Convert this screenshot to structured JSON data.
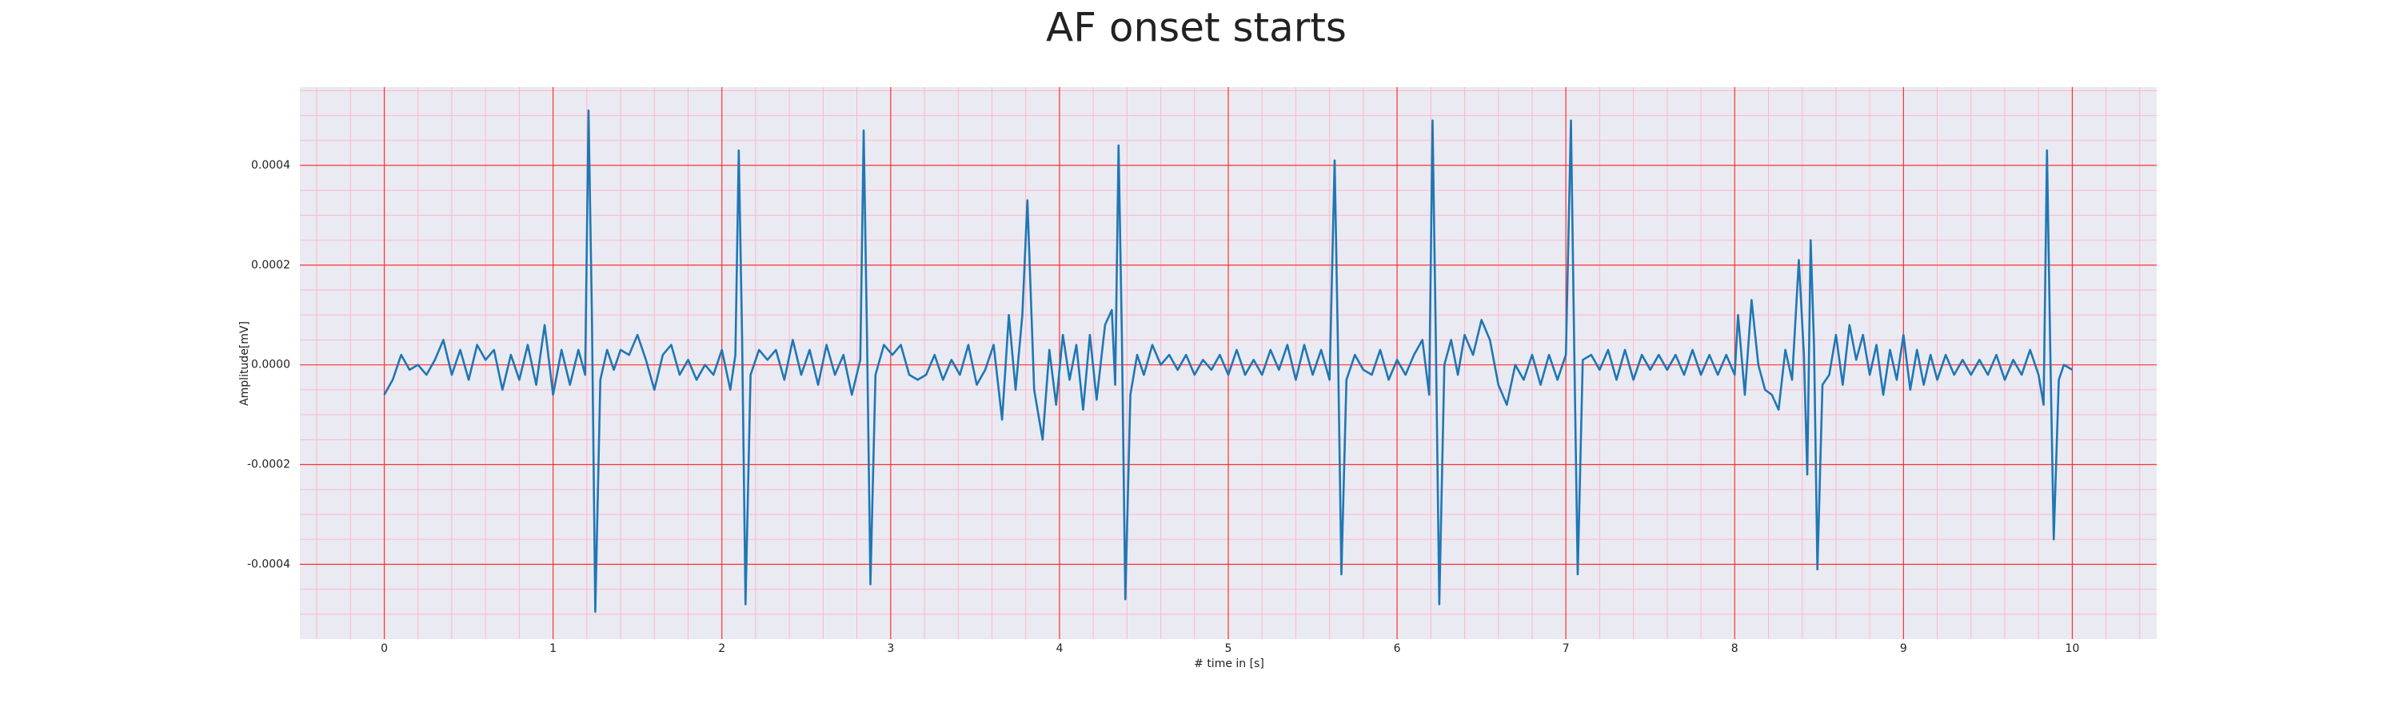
{
  "chart_data": {
    "type": "line",
    "title": "AF onset starts",
    "xlabel": "# time in [s]",
    "ylabel": "Amplitude[mV]",
    "xlim": [
      -0.5,
      10.5
    ],
    "ylim": [
      -0.00055,
      0.000557
    ],
    "xticks": [
      0,
      1,
      2,
      3,
      4,
      5,
      6,
      7,
      8,
      9,
      10
    ],
    "yticks": [
      -0.0004,
      -0.0002,
      {
        "value": 0,
        "label": "0.0000"
      },
      0.0002,
      0.0004
    ],
    "xminorticks": [
      -0.4,
      -0.2,
      0.2,
      0.4,
      0.6,
      0.8,
      1.2,
      1.4,
      1.6,
      1.8,
      2.2,
      2.4,
      2.6,
      2.8,
      3.2,
      3.4,
      3.6,
      3.8,
      4.2,
      4.4,
      4.6,
      4.8,
      5.2,
      5.4,
      5.6,
      5.8,
      6.2,
      6.4,
      6.6,
      6.8,
      7.2,
      7.4,
      7.6,
      7.8,
      8.2,
      8.4,
      8.6,
      8.8,
      9.2,
      9.4,
      9.6,
      9.8,
      10.2,
      10.4
    ],
    "yminorticks": [
      -0.0005,
      -0.00045,
      -0.00035,
      -0.0003,
      -0.00025,
      -0.00015,
      -0.0001,
      -5e-05,
      5e-05,
      0.0001,
      0.00015,
      0.00025,
      0.0003,
      0.00035,
      0.00045,
      0.0005,
      0.00055
    ],
    "grid": true,
    "grid_color": "#ff3030",
    "minor_grid_color": "#ffb6c8",
    "background": "#eaeaf2",
    "x": [
      0.0,
      0.05,
      0.1,
      0.15,
      0.2,
      0.25,
      0.3,
      0.35,
      0.4,
      0.45,
      0.5,
      0.55,
      0.6,
      0.65,
      0.7,
      0.75,
      0.8,
      0.85,
      0.9,
      0.95,
      1.0,
      1.05,
      1.1,
      1.15,
      1.19,
      1.21,
      1.23,
      1.25,
      1.28,
      1.32,
      1.36,
      1.4,
      1.45,
      1.5,
      1.55,
      1.6,
      1.65,
      1.7,
      1.75,
      1.8,
      1.85,
      1.9,
      1.95,
      2.0,
      2.05,
      2.08,
      2.1,
      2.12,
      2.14,
      2.17,
      2.22,
      2.27,
      2.32,
      2.37,
      2.42,
      2.47,
      2.52,
      2.57,
      2.62,
      2.67,
      2.72,
      2.77,
      2.82,
      2.84,
      2.86,
      2.88,
      2.91,
      2.96,
      3.01,
      3.06,
      3.11,
      3.16,
      3.21,
      3.26,
      3.31,
      3.36,
      3.41,
      3.46,
      3.51,
      3.56,
      3.61,
      3.66,
      3.7,
      3.74,
      3.78,
      3.81,
      3.85,
      3.88,
      3.9,
      3.94,
      3.98,
      4.02,
      4.06,
      4.1,
      4.14,
      4.18,
      4.22,
      4.27,
      4.31,
      4.33,
      4.35,
      4.37,
      4.39,
      4.42,
      4.46,
      4.5,
      4.55,
      4.6,
      4.65,
      4.7,
      4.75,
      4.8,
      4.85,
      4.9,
      4.95,
      5.0,
      5.05,
      5.1,
      5.15,
      5.2,
      5.25,
      5.3,
      5.35,
      5.4,
      5.45,
      5.5,
      5.55,
      5.6,
      5.63,
      5.65,
      5.67,
      5.7,
      5.75,
      5.8,
      5.85,
      5.9,
      5.95,
      6.0,
      6.05,
      6.1,
      6.15,
      6.19,
      6.21,
      6.23,
      6.25,
      6.28,
      6.32,
      6.36,
      6.4,
      6.45,
      6.5,
      6.55,
      6.6,
      6.65,
      6.7,
      6.75,
      6.8,
      6.85,
      6.9,
      6.95,
      7.0,
      7.03,
      7.05,
      7.07,
      7.1,
      7.15,
      7.2,
      7.25,
      7.3,
      7.35,
      7.4,
      7.45,
      7.5,
      7.55,
      7.6,
      7.65,
      7.7,
      7.75,
      7.8,
      7.85,
      7.9,
      7.95,
      8.0,
      8.02,
      8.06,
      8.1,
      8.14,
      8.18,
      8.22,
      8.26,
      8.3,
      8.34,
      8.38,
      8.41,
      8.43,
      8.45,
      8.47,
      8.49,
      8.52,
      8.56,
      8.6,
      8.64,
      8.68,
      8.72,
      8.76,
      8.8,
      8.84,
      8.88,
      8.92,
      8.96,
      9.0,
      9.04,
      9.08,
      9.12,
      9.16,
      9.2,
      9.25,
      9.3,
      9.35,
      9.4,
      9.45,
      9.5,
      9.55,
      9.6,
      9.65,
      9.7,
      9.75,
      9.8,
      9.83,
      9.85,
      9.87,
      9.89,
      9.92,
      9.95,
      10.0
    ],
    "series": [
      {
        "color": "#1f77b4",
        "values": [
          -6e-05,
          -3e-05,
          2e-05,
          -1e-05,
          0.0,
          -2e-05,
          1e-05,
          5e-05,
          -2e-05,
          3e-05,
          -3e-05,
          4e-05,
          1e-05,
          3e-05,
          -5e-05,
          2e-05,
          -3e-05,
          4e-05,
          -4e-05,
          8e-05,
          -6e-05,
          3e-05,
          -4e-05,
          3e-05,
          -2e-05,
          0.00051,
          0.0001,
          -0.000495,
          -3e-05,
          3e-05,
          -1e-05,
          3e-05,
          2e-05,
          6e-05,
          1e-05,
          -5e-05,
          2e-05,
          4e-05,
          -2e-05,
          1e-05,
          -3e-05,
          0.0,
          -2e-05,
          3e-05,
          -5e-05,
          2e-05,
          0.00043,
          5e-05,
          -0.00048,
          -2e-05,
          3e-05,
          1e-05,
          3e-05,
          -3e-05,
          5e-05,
          -2e-05,
          3e-05,
          -4e-05,
          4e-05,
          -2e-05,
          2e-05,
          -6e-05,
          1e-05,
          0.00047,
          5e-05,
          -0.00044,
          -2e-05,
          4e-05,
          2e-05,
          4e-05,
          -2e-05,
          -3e-05,
          -2e-05,
          2e-05,
          -3e-05,
          1e-05,
          -2e-05,
          4e-05,
          -4e-05,
          -1e-05,
          4e-05,
          -0.00011,
          0.0001,
          -5e-05,
          0.0001,
          0.00033,
          -5e-05,
          -0.00011,
          -0.00015,
          3e-05,
          -8e-05,
          6e-05,
          -3e-05,
          4e-05,
          -9e-05,
          6e-05,
          -7e-05,
          8e-05,
          0.00011,
          -4e-05,
          0.00044,
          5e-05,
          -0.00047,
          -6e-05,
          2e-05,
          -2e-05,
          4e-05,
          0.0,
          2e-05,
          -1e-05,
          2e-05,
          -2e-05,
          1e-05,
          -1e-05,
          2e-05,
          -2e-05,
          3e-05,
          -2e-05,
          1e-05,
          -2e-05,
          3e-05,
          -1e-05,
          4e-05,
          -3e-05,
          4e-05,
          -2e-05,
          3e-05,
          -3e-05,
          0.00041,
          3e-05,
          -0.00042,
          -3e-05,
          2e-05,
          -1e-05,
          -2e-05,
          3e-05,
          -3e-05,
          1e-05,
          -2e-05,
          2e-05,
          5e-05,
          -6e-05,
          0.00049,
          4e-05,
          -0.00048,
          0.0,
          5e-05,
          -2e-05,
          6e-05,
          2e-05,
          9e-05,
          5e-05,
          -4e-05,
          -8e-05,
          0.0,
          -3e-05,
          2e-05,
          -4e-05,
          2e-05,
          -3e-05,
          2e-05,
          0.00049,
          2e-05,
          -0.00042,
          1e-05,
          2e-05,
          -1e-05,
          3e-05,
          -3e-05,
          3e-05,
          -3e-05,
          2e-05,
          -1e-05,
          2e-05,
          -1e-05,
          2e-05,
          -2e-05,
          3e-05,
          -2e-05,
          2e-05,
          -2e-05,
          2e-05,
          -2e-05,
          0.0001,
          -6e-05,
          0.00013,
          0.0,
          -5e-05,
          -6e-05,
          -9e-05,
          3e-05,
          -3e-05,
          0.00021,
          2e-05,
          -0.00022,
          0.00025,
          4e-05,
          -0.00041,
          -4e-05,
          -2e-05,
          6e-05,
          -4e-05,
          8e-05,
          1e-05,
          6e-05,
          -2e-05,
          4e-05,
          -6e-05,
          3e-05,
          -3e-05,
          6e-05,
          -5e-05,
          3e-05,
          -4e-05,
          2e-05,
          -3e-05,
          2e-05,
          -2e-05,
          1e-05,
          -2e-05,
          1e-05,
          -2e-05,
          2e-05,
          -3e-05,
          1e-05,
          -2e-05,
          3e-05,
          -2e-05,
          -8e-05,
          0.00043,
          2e-05,
          -0.00035,
          -3e-05,
          0.0,
          -1e-05
        ]
      }
    ]
  }
}
